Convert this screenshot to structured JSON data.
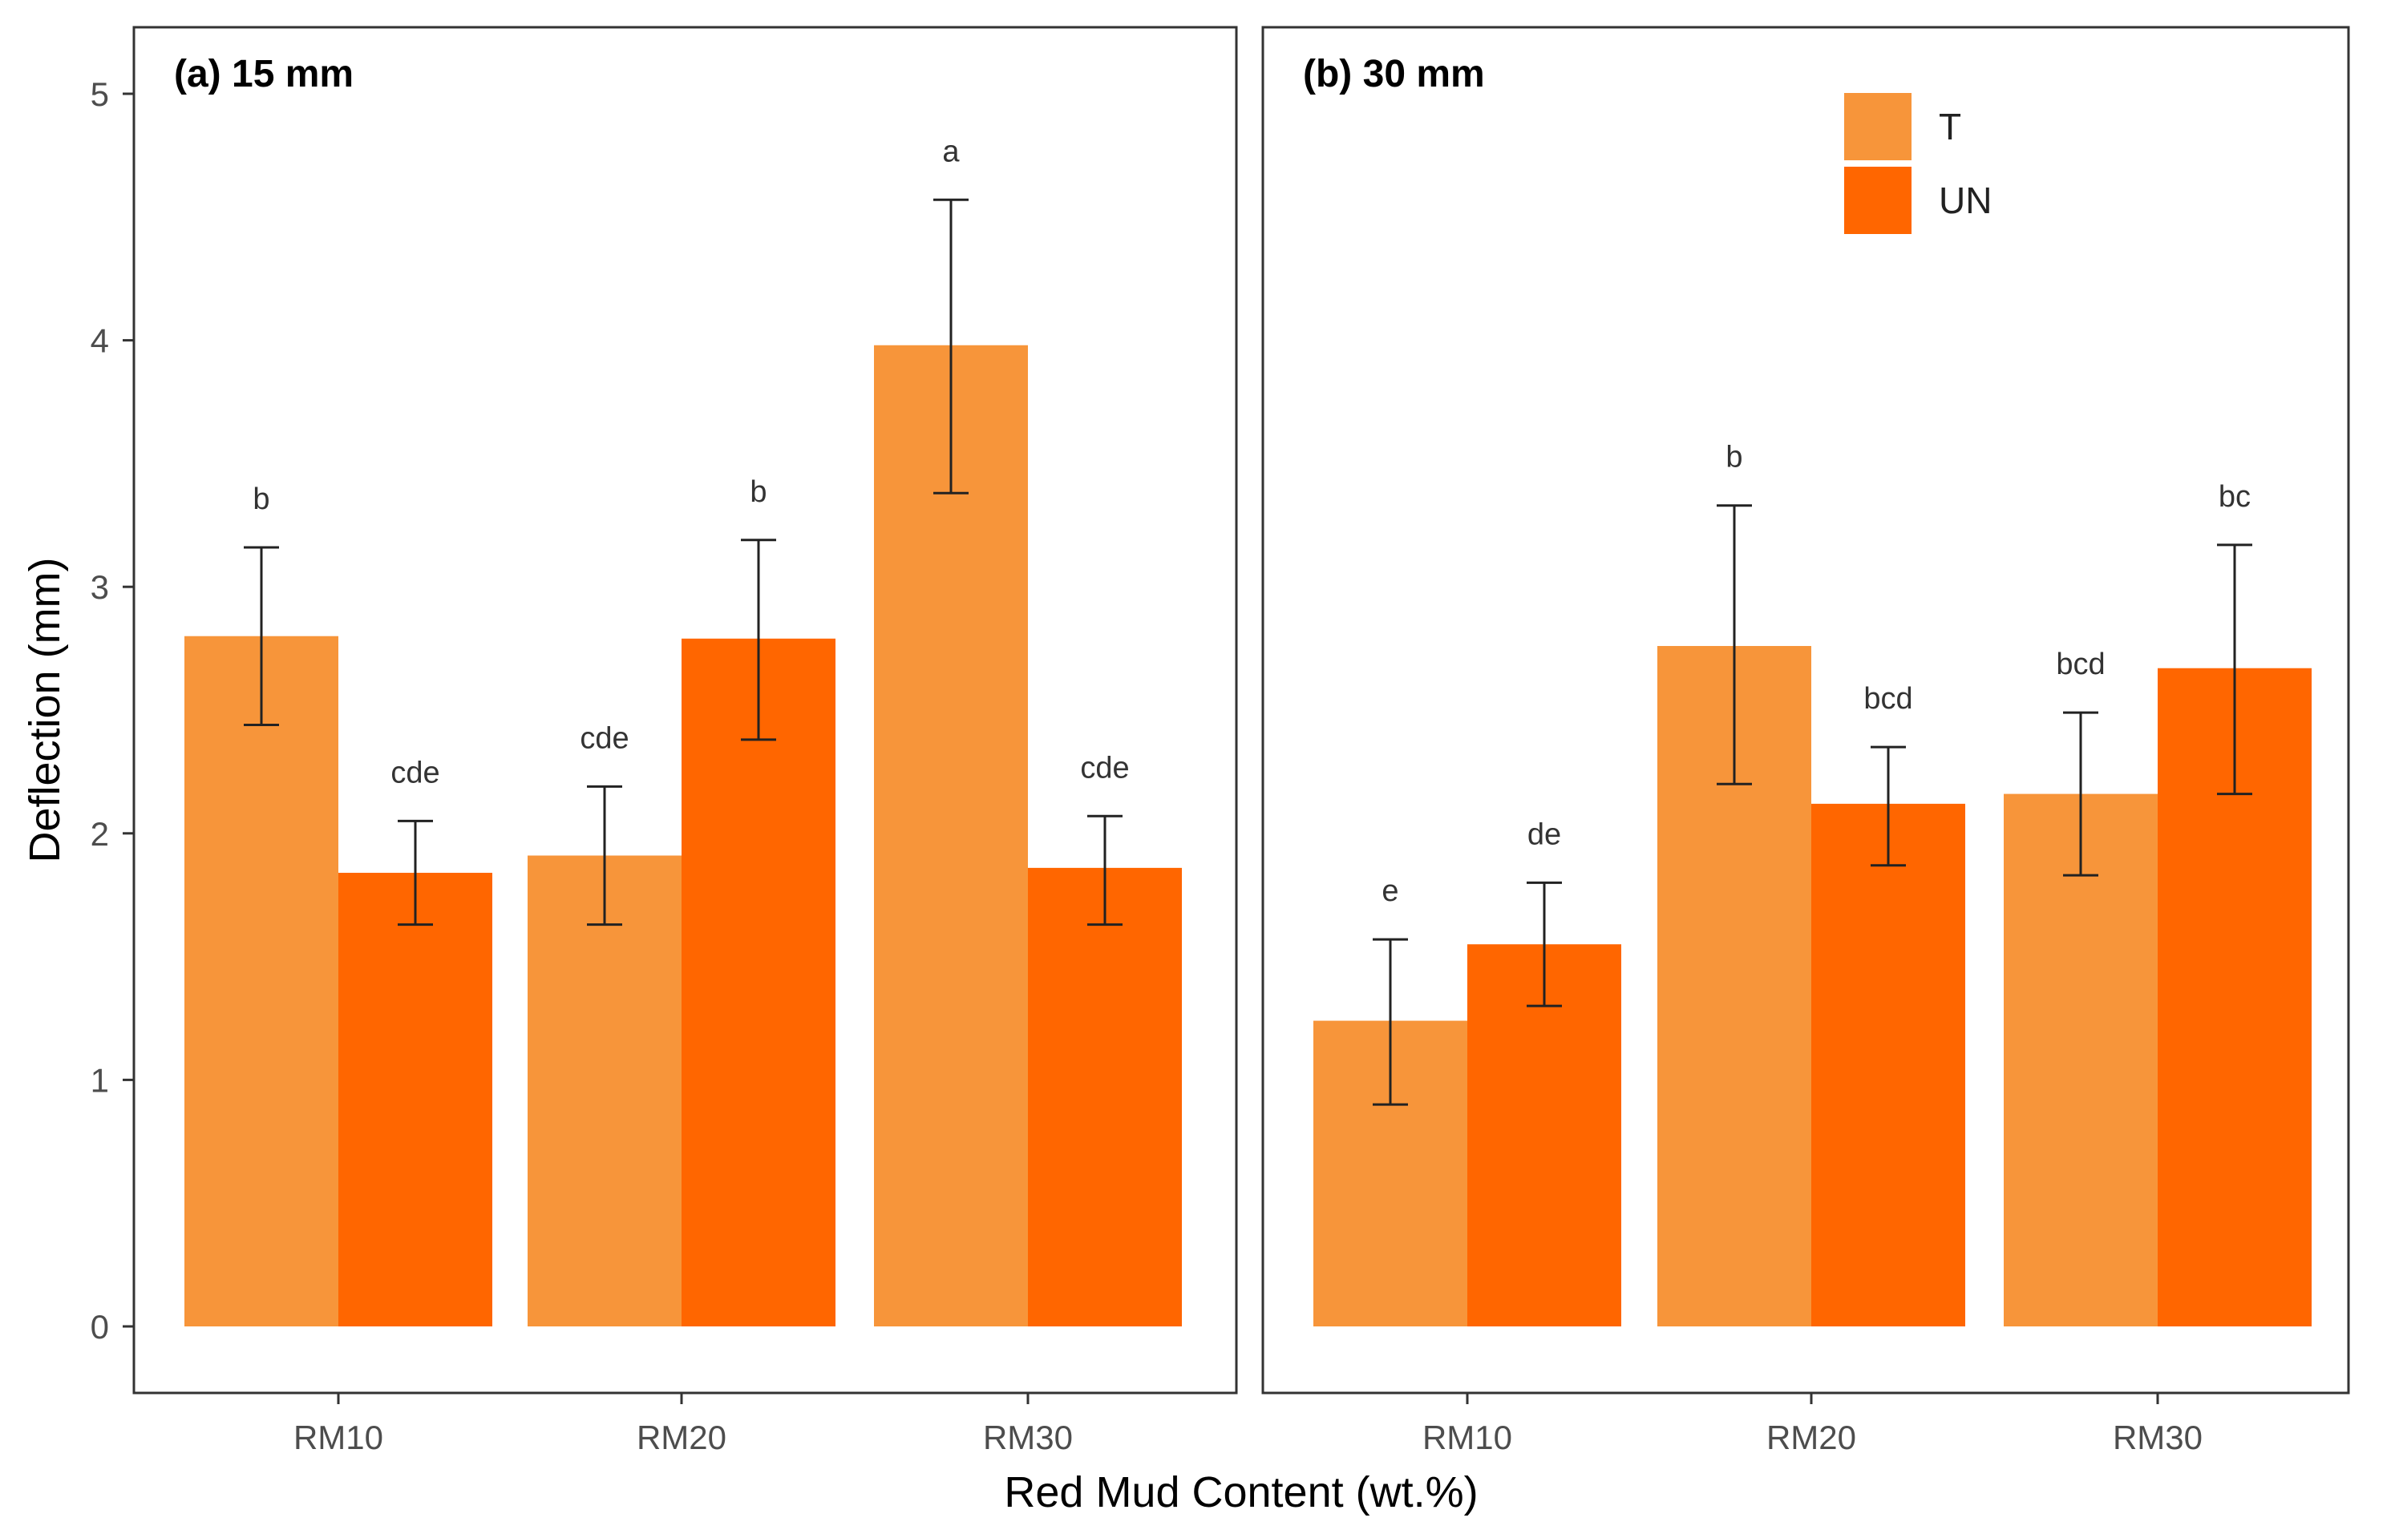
{
  "chart_data": {
    "type": "bar",
    "ylabel": "Deflection (mm)",
    "xlabel": "Red Mud Content (wt.%)",
    "ylim": [
      0,
      5
    ],
    "yticks": [
      0,
      1,
      2,
      3,
      4,
      5
    ],
    "grid": false,
    "legend": {
      "placement": "top-right of panel (b)",
      "entries": [
        {
          "name": "T",
          "color": "#F7953A"
        },
        {
          "name": "UN",
          "color": "#FF6600"
        }
      ]
    },
    "categories": [
      "RM10",
      "RM20",
      "RM30"
    ],
    "panels": [
      {
        "title": "(a) 15 mm",
        "series": [
          {
            "name": "T",
            "values": [
              2.8,
              1.91,
              3.98
            ],
            "err_low": [
              2.44,
              1.63,
              3.38
            ],
            "err_high": [
              3.16,
              2.19,
              4.57
            ],
            "letters": [
              "b",
              "cde",
              "a"
            ]
          },
          {
            "name": "UN",
            "values": [
              1.84,
              2.79,
              1.86
            ],
            "err_low": [
              1.63,
              2.38,
              1.63
            ],
            "err_high": [
              2.05,
              3.19,
              2.07
            ],
            "letters": [
              "cde",
              "b",
              "cde"
            ]
          }
        ]
      },
      {
        "title": "(b) 30 mm",
        "series": [
          {
            "name": "T",
            "values": [
              1.24,
              2.76,
              2.16
            ],
            "err_low": [
              0.9,
              2.2,
              1.83
            ],
            "err_high": [
              1.57,
              3.33,
              2.49
            ],
            "letters": [
              "e",
              "b",
              "bcd"
            ]
          },
          {
            "name": "UN",
            "values": [
              1.55,
              2.12,
              2.67
            ],
            "err_low": [
              1.3,
              1.87,
              2.16
            ],
            "err_high": [
              1.8,
              2.35,
              3.17
            ],
            "letters": [
              "de",
              "bcd",
              "bc"
            ]
          }
        ]
      }
    ]
  }
}
